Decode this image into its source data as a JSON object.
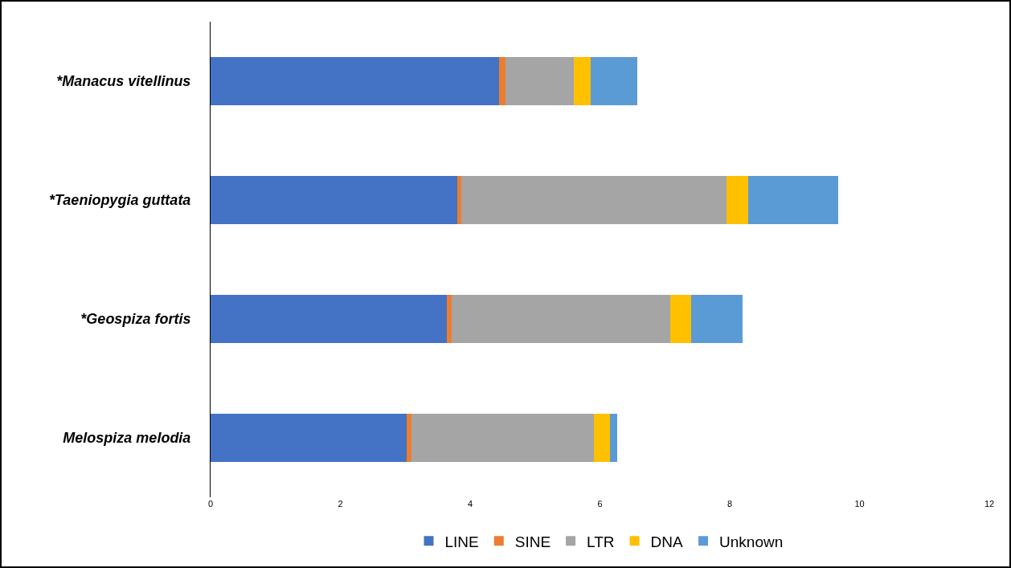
{
  "chart_data": {
    "type": "bar",
    "orientation": "horizontal",
    "stacked": true,
    "categories": [
      "*Manacus vitellinus",
      "*Taeniopygia guttata",
      "*Geospiza fortis",
      "Melospiza melodia"
    ],
    "series": [
      {
        "name": "LINE",
        "color": "#4472c4",
        "values": [
          4.45,
          3.8,
          3.64,
          3.02
        ]
      },
      {
        "name": "SINE",
        "color": "#ed7d31",
        "values": [
          0.09,
          0.06,
          0.08,
          0.08
        ]
      },
      {
        "name": "LTR",
        "color": "#a5a5a5",
        "values": [
          1.06,
          4.09,
          3.36,
          2.81
        ]
      },
      {
        "name": "DNA",
        "color": "#ffc000",
        "values": [
          0.26,
          0.34,
          0.32,
          0.24
        ]
      },
      {
        "name": "Unknown",
        "color": "#5b9bd5",
        "values": [
          0.71,
          1.38,
          0.8,
          0.11
        ]
      }
    ],
    "xlim": [
      0,
      12
    ],
    "xticks": [
      0,
      2,
      4,
      6,
      8,
      10,
      12
    ],
    "grid": false,
    "legend": "bottom"
  }
}
